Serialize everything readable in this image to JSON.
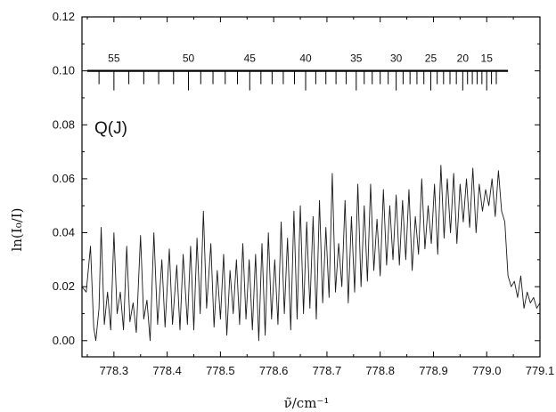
{
  "chart_data": {
    "type": "line",
    "title": "",
    "xlabel": "ν̃/cm⁻¹",
    "ylabel": "ln(I₀/I)",
    "xlim": [
      778.24,
      779.1
    ],
    "ylim": [
      -0.006,
      0.12
    ],
    "x_ticks": [
      "778.3",
      "778.4",
      "778.5",
      "778.6",
      "778.7",
      "778.8",
      "778.9",
      "779.0",
      "779.1"
    ],
    "y_ticks": [
      "0.00",
      "0.02",
      "0.04",
      "0.06",
      "0.08",
      "0.10",
      "0.12"
    ],
    "annotation": "Q(J)",
    "rotational_ladder": {
      "y": 0.1,
      "x_start": 778.25,
      "x_end": 779.04,
      "labels": [
        {
          "J": "55",
          "x": 778.3
        },
        {
          "J": "50",
          "x": 778.44
        },
        {
          "J": "45",
          "x": 778.555
        },
        {
          "J": "40",
          "x": 778.66
        },
        {
          "J": "35",
          "x": 778.755
        },
        {
          "J": "30",
          "x": 778.83
        },
        {
          "J": "25",
          "x": 778.895
        },
        {
          "J": "20",
          "x": 778.955
        },
        {
          "J": "15",
          "x": 779.0
        }
      ]
    },
    "series": [
      {
        "x": [
          778.24,
          778.248,
          778.256,
          778.262,
          778.266,
          778.272,
          778.276,
          778.282,
          778.288,
          778.294,
          778.3,
          778.306,
          778.312,
          778.318,
          778.324,
          778.33,
          778.336,
          778.342,
          778.35,
          778.356,
          778.362,
          778.368,
          778.375,
          778.382,
          778.39,
          778.396,
          778.404,
          778.41,
          778.418,
          778.424,
          778.43,
          778.438,
          778.444,
          778.45,
          778.456,
          778.462,
          778.468,
          778.474,
          778.482,
          778.488,
          778.494,
          778.5,
          778.506,
          778.512,
          778.518,
          778.524,
          778.53,
          778.536,
          778.542,
          778.548,
          778.554,
          778.56,
          778.566,
          778.572,
          778.578,
          778.584,
          778.59,
          778.596,
          778.602,
          778.608,
          778.614,
          778.62,
          778.626,
          778.632,
          778.638,
          778.644,
          778.65,
          778.656,
          778.662,
          778.668,
          778.674,
          778.68,
          778.686,
          778.692,
          778.698,
          778.704,
          778.71,
          778.716,
          778.722,
          778.728,
          778.734,
          778.74,
          778.746,
          778.752,
          778.758,
          778.764,
          778.77,
          778.776,
          778.782,
          778.788,
          778.794,
          778.8,
          778.806,
          778.812,
          778.818,
          778.824,
          778.83,
          778.836,
          778.842,
          778.848,
          778.854,
          778.86,
          778.866,
          778.872,
          778.878,
          778.884,
          778.89,
          778.896,
          778.902,
          778.908,
          778.914,
          778.92,
          778.926,
          778.932,
          778.938,
          778.944,
          778.95,
          778.956,
          778.962,
          778.968,
          778.974,
          778.98,
          778.986,
          778.992,
          778.998,
          779.004,
          779.01,
          779.016,
          779.022,
          779.028,
          779.034,
          779.04,
          779.046,
          779.052,
          779.058,
          779.064,
          779.07,
          779.076,
          779.082,
          779.088,
          779.094,
          779.1
        ],
        "y": [
          0.02,
          0.018,
          0.035,
          0.005,
          0.0,
          0.012,
          0.042,
          0.006,
          0.018,
          0.004,
          0.04,
          0.01,
          0.018,
          0.004,
          0.035,
          0.007,
          0.014,
          0.003,
          0.039,
          0.008,
          0.015,
          0.0,
          0.04,
          0.006,
          0.03,
          0.005,
          0.034,
          0.006,
          0.028,
          0.004,
          0.032,
          0.006,
          0.035,
          0.004,
          0.038,
          0.01,
          0.048,
          0.012,
          0.036,
          0.005,
          0.026,
          0.008,
          0.032,
          0.002,
          0.026,
          0.01,
          0.03,
          0.006,
          0.036,
          0.008,
          0.03,
          0.004,
          0.032,
          0.0,
          0.036,
          0.002,
          0.04,
          0.008,
          0.03,
          0.006,
          0.044,
          0.01,
          0.038,
          0.004,
          0.048,
          0.008,
          0.05,
          0.01,
          0.044,
          0.012,
          0.046,
          0.008,
          0.052,
          0.014,
          0.042,
          0.016,
          0.062,
          0.018,
          0.036,
          0.02,
          0.052,
          0.014,
          0.046,
          0.018,
          0.058,
          0.02,
          0.05,
          0.022,
          0.058,
          0.026,
          0.045,
          0.024,
          0.056,
          0.028,
          0.05,
          0.03,
          0.054,
          0.028,
          0.052,
          0.03,
          0.056,
          0.026,
          0.046,
          0.032,
          0.06,
          0.034,
          0.05,
          0.036,
          0.058,
          0.032,
          0.065,
          0.038,
          0.06,
          0.04,
          0.062,
          0.036,
          0.058,
          0.044,
          0.06,
          0.042,
          0.064,
          0.04,
          0.058,
          0.048,
          0.056,
          0.05,
          0.06,
          0.046,
          0.063,
          0.048,
          0.044,
          0.024,
          0.02,
          0.022,
          0.016,
          0.024,
          0.012,
          0.018,
          0.014,
          0.016,
          0.012,
          0.014
        ]
      }
    ]
  }
}
